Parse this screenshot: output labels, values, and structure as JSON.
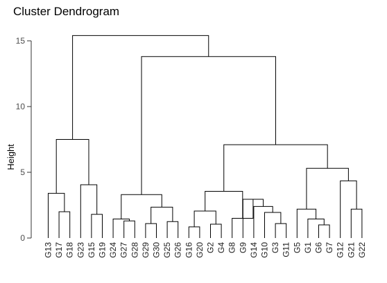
{
  "chart_data": {
    "type": "dendrogram",
    "title": "Cluster Dendrogram",
    "ylabel": "Height",
    "xlabel": "",
    "ylim": [
      0,
      15.5
    ],
    "y_ticks": [
      0,
      5,
      10,
      15
    ],
    "leaves": [
      "G13",
      "G17",
      "G18",
      "G23",
      "G15",
      "G19",
      "G24",
      "G27",
      "G28",
      "G29",
      "G30",
      "G25",
      "G26",
      "G16",
      "G20",
      "G2",
      "G4",
      "G8",
      "G9",
      "G14",
      "G10",
      "G3",
      "G11",
      "G5",
      "G1",
      "G6",
      "G7",
      "G12",
      "G21",
      "G22"
    ],
    "merges": [
      {
        "id": "m1",
        "left": "G18",
        "right": "G17",
        "height": 2.0
      },
      {
        "id": "m2",
        "left": "G13",
        "right": "m1",
        "height": 3.4
      },
      {
        "id": "m3",
        "left": "G15",
        "right": "G19",
        "height": 1.8
      },
      {
        "id": "m4",
        "left": "G23",
        "right": "m3",
        "height": 4.05
      },
      {
        "id": "m5",
        "left": "m2",
        "right": "m4",
        "height": 7.5
      },
      {
        "id": "m6",
        "left": "G27",
        "right": "G28",
        "height": 1.3
      },
      {
        "id": "m7",
        "left": "G24",
        "right": "m6",
        "height": 1.45
      },
      {
        "id": "m8",
        "left": "G29",
        "right": "G30",
        "height": 1.1
      },
      {
        "id": "m9",
        "left": "G25",
        "right": "G26",
        "height": 1.25
      },
      {
        "id": "m10",
        "left": "m8",
        "right": "m9",
        "height": 2.35
      },
      {
        "id": "m11",
        "left": "m7",
        "right": "m10",
        "height": 3.3
      },
      {
        "id": "m12",
        "left": "G16",
        "right": "G20",
        "height": 0.85
      },
      {
        "id": "m13",
        "left": "G2",
        "right": "G4",
        "height": 1.05
      },
      {
        "id": "m14",
        "left": "m12",
        "right": "m13",
        "height": 2.05
      },
      {
        "id": "m15",
        "left": "G3",
        "right": "G11",
        "height": 1.1
      },
      {
        "id": "m16",
        "left": "G10",
        "right": "m15",
        "height": 1.95
      },
      {
        "id": "m17",
        "left": "G14",
        "right": "m16",
        "height": 2.4
      },
      {
        "id": "m18",
        "left": "G9",
        "right": "m17",
        "height": 2.95
      },
      {
        "id": "m19",
        "left": "G8",
        "right": "m18",
        "height": 1.5
      },
      {
        "id": "m20",
        "left": "m14",
        "right": "m19",
        "height": 3.55
      },
      {
        "id": "m21",
        "left": "G6",
        "right": "G7",
        "height": 1.0
      },
      {
        "id": "m22",
        "left": "G1",
        "right": "m21",
        "height": 1.45
      },
      {
        "id": "m23",
        "left": "G5",
        "right": "m22",
        "height": 2.2
      },
      {
        "id": "m24",
        "left": "G21",
        "right": "G22",
        "height": 2.2
      },
      {
        "id": "m25",
        "left": "G12",
        "right": "m24",
        "height": 4.35
      },
      {
        "id": "m26",
        "left": "m23",
        "right": "m25",
        "height": 5.3
      },
      {
        "id": "m27",
        "left": "m20",
        "right": "m26",
        "height": 7.1
      },
      {
        "id": "m28",
        "left": "m11",
        "right": "m27",
        "height": 13.8
      },
      {
        "id": "m29",
        "left": "m5",
        "right": "m28",
        "height": 15.4
      }
    ]
  }
}
